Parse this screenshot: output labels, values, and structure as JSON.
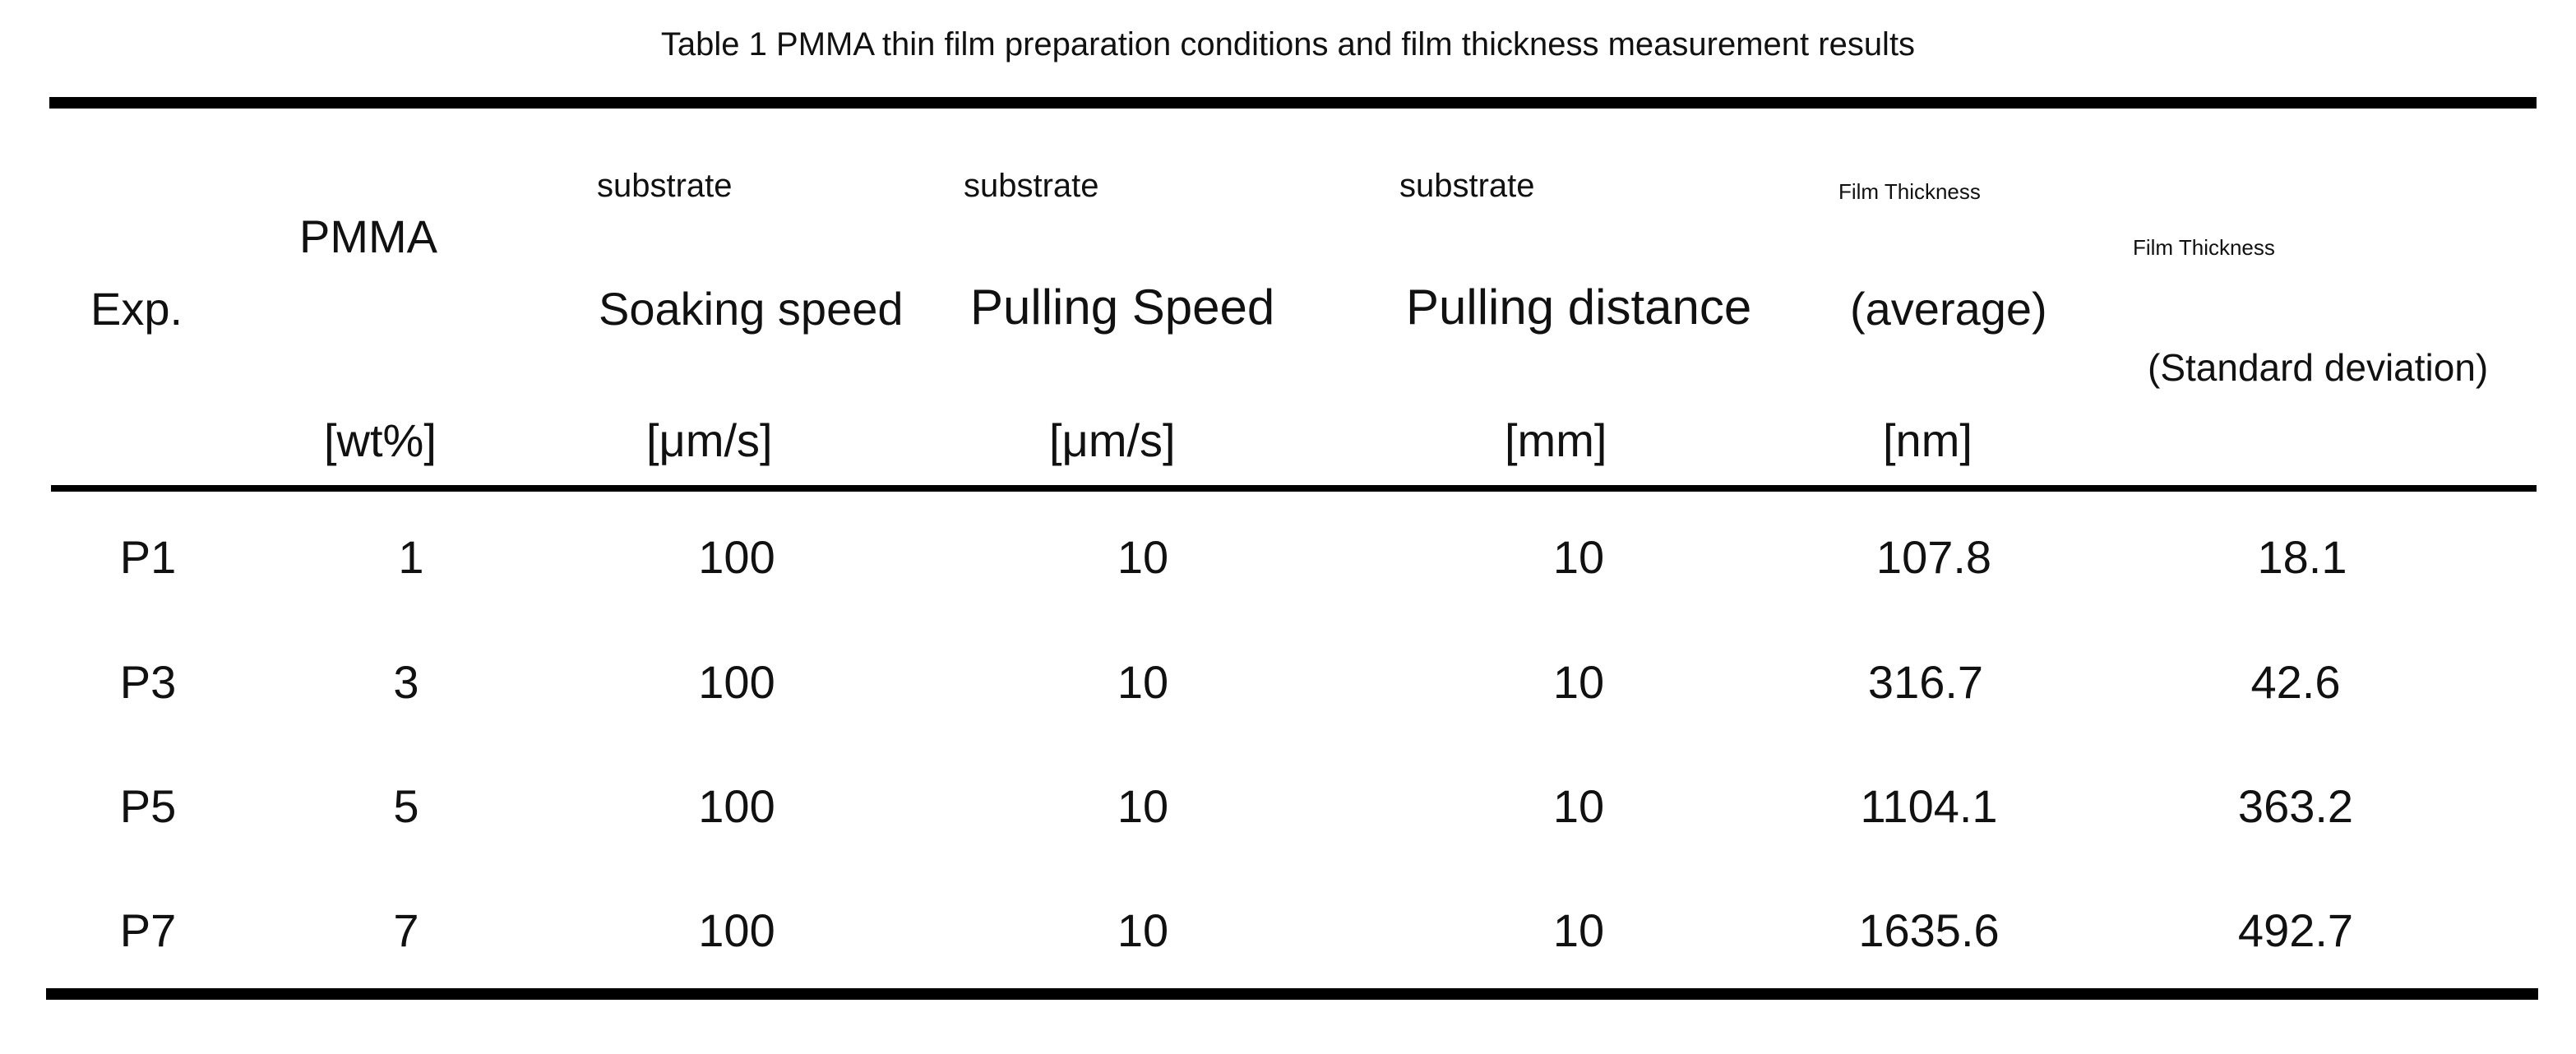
{
  "caption": "Table 1 PMMA thin film preparation conditions and film thickness measurement results",
  "headers": {
    "exp": "Exp.",
    "pmma": "PMMA",
    "pmma_unit": "[wt%]",
    "soak_pre": "substrate",
    "soak_label": "Soaking speed",
    "soak_unit": "[μm/s]",
    "pull_pre": "substrate",
    "pull_label": "Pulling Speed",
    "pull_unit": "[μm/s]",
    "dist_pre": "substrate",
    "dist_label": "Pulling distance",
    "dist_unit": "[mm]",
    "avg_pre": "Film Thickness",
    "avg_label": "(average)",
    "avg_unit": "[nm]",
    "sd_pre": "Film Thickness",
    "sd_label": "(Standard deviation)"
  },
  "rows": [
    [
      "P1",
      "1",
      "100",
      "10",
      "10",
      "107.8",
      "18.1"
    ],
    [
      "P3",
      "3",
      "100",
      "10",
      "10",
      "316.7",
      "42.6"
    ],
    [
      "P5",
      "5",
      "100",
      "10",
      "10",
      "1104.1",
      "363.2"
    ],
    [
      "P7",
      "7",
      "100",
      "10",
      "10",
      "1635.6",
      "492.7"
    ]
  ]
}
